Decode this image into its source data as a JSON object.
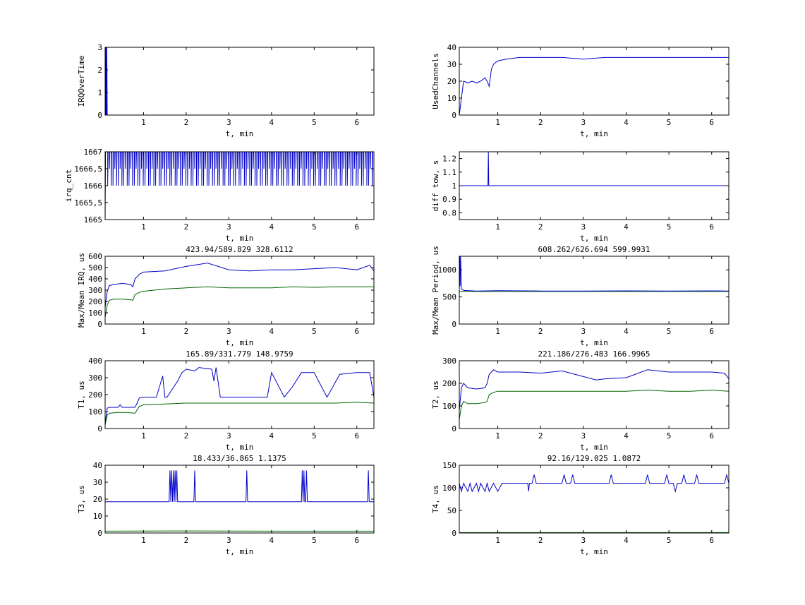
{
  "figure": {
    "background": "#ffffff",
    "line_colors": {
      "primary": "#0000c8",
      "secondary": "#006400"
    }
  },
  "chart_data": [
    {
      "id": "irqovertime",
      "type": "line",
      "title": "",
      "xlabel": "t, min",
      "ylabel": "IRQOverTime",
      "xlim": [
        0.1,
        6.4
      ],
      "ylim": [
        0,
        3
      ],
      "xticks": [
        1,
        2,
        3,
        4,
        5,
        6
      ],
      "xtick_labels": [
        "1",
        "2",
        "3",
        "4",
        "5",
        "6"
      ],
      "yticks": [
        0,
        1,
        2,
        3
      ],
      "ytick_labels": [
        "0",
        "1",
        "2",
        "3"
      ],
      "series": [
        {
          "color": "#0000c8",
          "x": [
            0.1,
            0.11,
            0.115,
            0.12,
            0.125,
            0.13,
            0.135,
            0.14,
            0.15,
            0.16,
            6.4
          ],
          "y": [
            0,
            3,
            0,
            3,
            0,
            1.5,
            0,
            3,
            0,
            0,
            0
          ]
        }
      ]
    },
    {
      "id": "usedchannels",
      "type": "line",
      "title": "",
      "xlabel": "t, min",
      "ylabel": "UsedChannels",
      "xlim": [
        0.1,
        6.4
      ],
      "ylim": [
        0,
        40
      ],
      "xticks": [
        1,
        2,
        3,
        4,
        5,
        6
      ],
      "xtick_labels": [
        "1",
        "2",
        "3",
        "4",
        "5",
        "6"
      ],
      "yticks": [
        0,
        10,
        20,
        30,
        40
      ],
      "ytick_labels": [
        "0",
        "10",
        "20",
        "30",
        "40"
      ],
      "series": [
        {
          "color": "#0000c8",
          "x": [
            0.1,
            0.15,
            0.2,
            0.3,
            0.4,
            0.5,
            0.6,
            0.7,
            0.75,
            0.8,
            0.85,
            0.9,
            1.0,
            1.2,
            1.5,
            2.0,
            2.5,
            3.0,
            3.5,
            4.0,
            4.5,
            5.0,
            5.5,
            6.0,
            6.4
          ],
          "y": [
            0,
            10,
            20,
            19,
            20,
            19,
            20,
            22,
            20,
            17,
            27,
            30,
            32,
            33,
            34,
            34,
            34,
            33,
            34,
            34,
            34,
            34,
            34,
            34,
            34
          ]
        }
      ]
    },
    {
      "id": "irq-cnt",
      "type": "line",
      "title": "",
      "xlabel": "t, min",
      "ylabel": "irq_cnt",
      "xlim": [
        0.1,
        6.4
      ],
      "ylim": [
        1665,
        1667
      ],
      "xticks": [
        1,
        2,
        3,
        4,
        5,
        6
      ],
      "xtick_labels": [
        "1",
        "2",
        "3",
        "4",
        "5",
        "6"
      ],
      "yticks": [
        1665,
        1665.5,
        1666,
        1666.5,
        1667
      ],
      "ytick_labels": [
        "1665",
        "1665,5",
        "1666",
        "1666,5",
        "1667"
      ],
      "series": [
        {
          "color": "#0000c8",
          "x": [
            0.1,
            0.11,
            0.12,
            0.13,
            0.14,
            6.4
          ],
          "y": [
            1665,
            1667,
            1665,
            1667,
            1667,
            1667
          ]
        }
      ]
    },
    {
      "id": "diff-tow",
      "type": "line",
      "title": "",
      "xlabel": "t, min",
      "ylabel": "diff tow, s",
      "xlim": [
        0.1,
        6.4
      ],
      "ylim": [
        0.75,
        1.25
      ],
      "xticks": [
        1,
        2,
        3,
        4,
        5,
        6
      ],
      "xtick_labels": [
        "1",
        "2",
        "3",
        "4",
        "5",
        "6"
      ],
      "yticks": [
        0.8,
        0.9,
        1.0,
        1.1,
        1.2
      ],
      "ytick_labels": [
        "0.8",
        "0.9",
        "1",
        "1.1",
        "1.2"
      ],
      "series": [
        {
          "color": "#0000c8",
          "x": [
            0.1,
            0.77,
            0.78,
            0.79,
            0.8,
            6.4
          ],
          "y": [
            1.0,
            1.0,
            1.25,
            1.0,
            1.0,
            1.0
          ]
        }
      ]
    },
    {
      "id": "max-mean-irq",
      "type": "line",
      "title": "423.94/589.829  328.6112",
      "xlabel": "t, min",
      "ylabel": "Max/Mean IRQ, us",
      "xlim": [
        0.1,
        6.4
      ],
      "ylim": [
        0,
        600
      ],
      "xticks": [
        1,
        2,
        3,
        4,
        5,
        6
      ],
      "xtick_labels": [
        "1",
        "2",
        "3",
        "4",
        "5",
        "6"
      ],
      "yticks": [
        0,
        100,
        200,
        300,
        400,
        500,
        600
      ],
      "ytick_labels": [
        "0",
        "100",
        "200",
        "300",
        "400",
        "500",
        "600"
      ],
      "series": [
        {
          "color": "#0000c8",
          "x": [
            0.1,
            0.15,
            0.2,
            0.3,
            0.5,
            0.7,
            0.75,
            0.8,
            0.9,
            1.0,
            1.5,
            2.0,
            2.5,
            3.0,
            3.5,
            4.0,
            4.5,
            5.0,
            5.5,
            6.0,
            6.3,
            6.4
          ],
          "y": [
            150,
            290,
            340,
            350,
            360,
            350,
            330,
            400,
            440,
            460,
            470,
            510,
            540,
            480,
            470,
            480,
            480,
            490,
            500,
            480,
            520,
            470
          ]
        },
        {
          "color": "#006400",
          "x": [
            0.1,
            0.15,
            0.2,
            0.3,
            0.5,
            0.7,
            0.75,
            0.8,
            0.9,
            1.0,
            1.5,
            2.0,
            2.5,
            3.0,
            3.5,
            4.0,
            4.5,
            5.0,
            5.5,
            6.0,
            6.4
          ],
          "y": [
            60,
            170,
            210,
            220,
            220,
            215,
            210,
            260,
            280,
            290,
            310,
            320,
            330,
            320,
            320,
            320,
            330,
            325,
            330,
            330,
            330
          ]
        }
      ]
    },
    {
      "id": "max-mean-period",
      "type": "line",
      "title": "608.262/626.694  599.9931",
      "xlabel": "t, min",
      "ylabel": "Max/Mean Period, us",
      "xlim": [
        0.1,
        6.4
      ],
      "ylim": [
        0,
        1250
      ],
      "xticks": [
        1,
        2,
        3,
        4,
        5,
        6
      ],
      "xtick_labels": [
        "1",
        "2",
        "3",
        "4",
        "5",
        "6"
      ],
      "yticks": [
        0,
        500,
        1000
      ],
      "ytick_labels": [
        "0",
        "500",
        "1000"
      ],
      "series": [
        {
          "color": "#006400",
          "x": [
            0.1,
            6.4
          ],
          "y": [
            600,
            600
          ]
        },
        {
          "color": "#0000c8",
          "x": [
            0.1,
            0.11,
            0.12,
            0.13,
            0.15,
            0.2,
            0.5,
            1.0,
            2.0,
            3.0,
            4.0,
            5.0,
            6.0,
            6.4
          ],
          "y": [
            610,
            1250,
            700,
            1250,
            650,
            620,
            610,
            615,
            610,
            610,
            612,
            610,
            612,
            610
          ]
        }
      ]
    },
    {
      "id": "t1",
      "type": "line",
      "title": "165.89/331.779  148.9759",
      "xlabel": "t, min",
      "ylabel": "T1, us",
      "xlim": [
        0.1,
        6.4
      ],
      "ylim": [
        0,
        400
      ],
      "xticks": [
        1,
        2,
        3,
        4,
        5,
        6
      ],
      "xtick_labels": [
        "1",
        "2",
        "3",
        "4",
        "5",
        "6"
      ],
      "yticks": [
        0,
        100,
        200,
        300,
        400
      ],
      "ytick_labels": [
        "0",
        "100",
        "200",
        "300",
        "400"
      ],
      "series": [
        {
          "color": "#0000c8",
          "x": [
            0.1,
            0.15,
            0.2,
            0.4,
            0.45,
            0.5,
            0.8,
            0.85,
            0.9,
            1.0,
            1.3,
            1.45,
            1.5,
            1.55,
            1.8,
            1.9,
            2.0,
            2.2,
            2.3,
            2.6,
            2.65,
            2.7,
            2.8,
            3.0,
            3.5,
            3.9,
            4.0,
            4.3,
            4.5,
            4.7,
            5.0,
            5.3,
            5.6,
            6.0,
            6.3,
            6.4
          ],
          "y": [
            30,
            120,
            125,
            125,
            140,
            125,
            125,
            150,
            180,
            185,
            185,
            310,
            185,
            185,
            280,
            330,
            350,
            340,
            360,
            350,
            280,
            360,
            185,
            185,
            185,
            185,
            330,
            185,
            250,
            330,
            330,
            185,
            320,
            330,
            330,
            185
          ]
        },
        {
          "color": "#006400",
          "x": [
            0.1,
            0.15,
            0.2,
            0.4,
            0.6,
            0.8,
            0.85,
            0.9,
            1.0,
            1.5,
            2.0,
            2.5,
            3.0,
            3.5,
            4.0,
            4.5,
            5.0,
            5.5,
            6.0,
            6.4
          ],
          "y": [
            20,
            80,
            90,
            95,
            95,
            90,
            110,
            130,
            140,
            145,
            150,
            150,
            150,
            150,
            150,
            150,
            150,
            150,
            155,
            150
          ]
        }
      ]
    },
    {
      "id": "t2",
      "type": "line",
      "title": "221.186/276.483  166.9965",
      "xlabel": "t, min",
      "ylabel": "T2, us",
      "xlim": [
        0.1,
        6.4
      ],
      "ylim": [
        0,
        300
      ],
      "xticks": [
        1,
        2,
        3,
        4,
        5,
        6
      ],
      "xtick_labels": [
        "1",
        "2",
        "3",
        "4",
        "5",
        "6"
      ],
      "yticks": [
        0,
        100,
        200,
        300
      ],
      "ytick_labels": [
        "0",
        "100",
        "200",
        "300"
      ],
      "series": [
        {
          "color": "#0000c8",
          "x": [
            0.1,
            0.15,
            0.2,
            0.3,
            0.5,
            0.7,
            0.75,
            0.8,
            0.85,
            0.9,
            1.0,
            1.5,
            2.0,
            2.5,
            3.0,
            3.3,
            3.5,
            4.0,
            4.5,
            5.0,
            5.5,
            6.0,
            6.3,
            6.4
          ],
          "y": [
            80,
            180,
            200,
            180,
            175,
            180,
            200,
            240,
            250,
            260,
            250,
            250,
            245,
            255,
            230,
            215,
            220,
            225,
            260,
            250,
            250,
            250,
            245,
            220
          ]
        },
        {
          "color": "#006400",
          "x": [
            0.1,
            0.15,
            0.2,
            0.3,
            0.5,
            0.7,
            0.75,
            0.8,
            0.9,
            1.0,
            1.5,
            2.0,
            2.5,
            3.0,
            3.5,
            4.0,
            4.5,
            5.0,
            5.5,
            6.0,
            6.4
          ],
          "y": [
            40,
            100,
            120,
            110,
            110,
            115,
            120,
            150,
            160,
            165,
            165,
            165,
            165,
            165,
            165,
            165,
            170,
            165,
            165,
            170,
            165
          ]
        }
      ]
    },
    {
      "id": "t3",
      "type": "line",
      "title": "18.433/36.865  1.1375",
      "xlabel": "t, min",
      "ylabel": "T3, us",
      "xlim": [
        0.1,
        6.4
      ],
      "ylim": [
        0,
        40
      ],
      "xticks": [
        1,
        2,
        3,
        4,
        5,
        6
      ],
      "xtick_labels": [
        "1",
        "2",
        "3",
        "4",
        "5",
        "6"
      ],
      "yticks": [
        0,
        10,
        20,
        30,
        40
      ],
      "ytick_labels": [
        "0",
        "10",
        "20",
        "30",
        "40"
      ],
      "series": [
        {
          "color": "#0000c8",
          "x": [
            0.1,
            1.6,
            1.62,
            1.64,
            1.66,
            1.68,
            1.7,
            1.72,
            1.74,
            1.76,
            1.78,
            1.8,
            2.18,
            2.2,
            2.22,
            3.4,
            3.42,
            3.44,
            4.7,
            4.72,
            4.74,
            4.76,
            4.78,
            4.8,
            4.82,
            4.84,
            6.25,
            6.27,
            6.29,
            6.4
          ],
          "y": [
            18.4,
            18.4,
            36.9,
            18.4,
            36.9,
            18.4,
            36.9,
            18.4,
            36.9,
            18.4,
            36.9,
            18.4,
            18.4,
            36.9,
            18.4,
            18.4,
            36.9,
            18.4,
            18.4,
            36.9,
            18.4,
            36.9,
            18.4,
            18.4,
            36.9,
            18.4,
            18.4,
            36.9,
            18.4,
            18.4
          ]
        },
        {
          "color": "#006400",
          "x": [
            0.1,
            2.0,
            4.0,
            6.4
          ],
          "y": [
            1.1,
            1.2,
            1.1,
            1.1
          ]
        }
      ]
    },
    {
      "id": "t4",
      "type": "line",
      "title": "92.16/129.025  1.0872",
      "xlabel": "t, min",
      "ylabel": "T4, us",
      "xlim": [
        0.1,
        6.4
      ],
      "ylim": [
        0,
        150
      ],
      "xticks": [
        1,
        2,
        3,
        4,
        5,
        6
      ],
      "xtick_labels": [
        "1",
        "2",
        "3",
        "4",
        "5",
        "6"
      ],
      "yticks": [
        0,
        50,
        100,
        150
      ],
      "ytick_labels": [
        "0",
        "50",
        "100",
        "150"
      ],
      "series": [
        {
          "color": "#0000c8",
          "x": [
            0.1,
            0.15,
            0.2,
            0.3,
            0.35,
            0.4,
            0.5,
            0.55,
            0.6,
            0.7,
            0.75,
            0.8,
            0.9,
            1.0,
            1.1,
            1.7,
            1.72,
            1.74,
            1.8,
            1.85,
            1.9,
            2.5,
            2.55,
            2.6,
            2.7,
            2.75,
            2.8,
            3.6,
            3.65,
            3.7,
            4.45,
            4.5,
            4.55,
            4.9,
            4.95,
            5.0,
            5.1,
            5.15,
            5.2,
            5.3,
            5.35,
            5.4,
            5.6,
            5.65,
            5.7,
            6.3,
            6.35,
            6.4
          ],
          "y": [
            110,
            92,
            110,
            92,
            110,
            92,
            110,
            92,
            110,
            92,
            110,
            92,
            110,
            92,
            110,
            110,
            92,
            110,
            110,
            129,
            110,
            110,
            129,
            110,
            110,
            129,
            110,
            110,
            129,
            110,
            110,
            129,
            110,
            110,
            129,
            110,
            110,
            92,
            110,
            110,
            129,
            110,
            110,
            129,
            110,
            110,
            129,
            110
          ]
        },
        {
          "color": "#006400",
          "x": [
            0.1,
            6.4
          ],
          "y": [
            1,
            1
          ]
        }
      ]
    }
  ]
}
